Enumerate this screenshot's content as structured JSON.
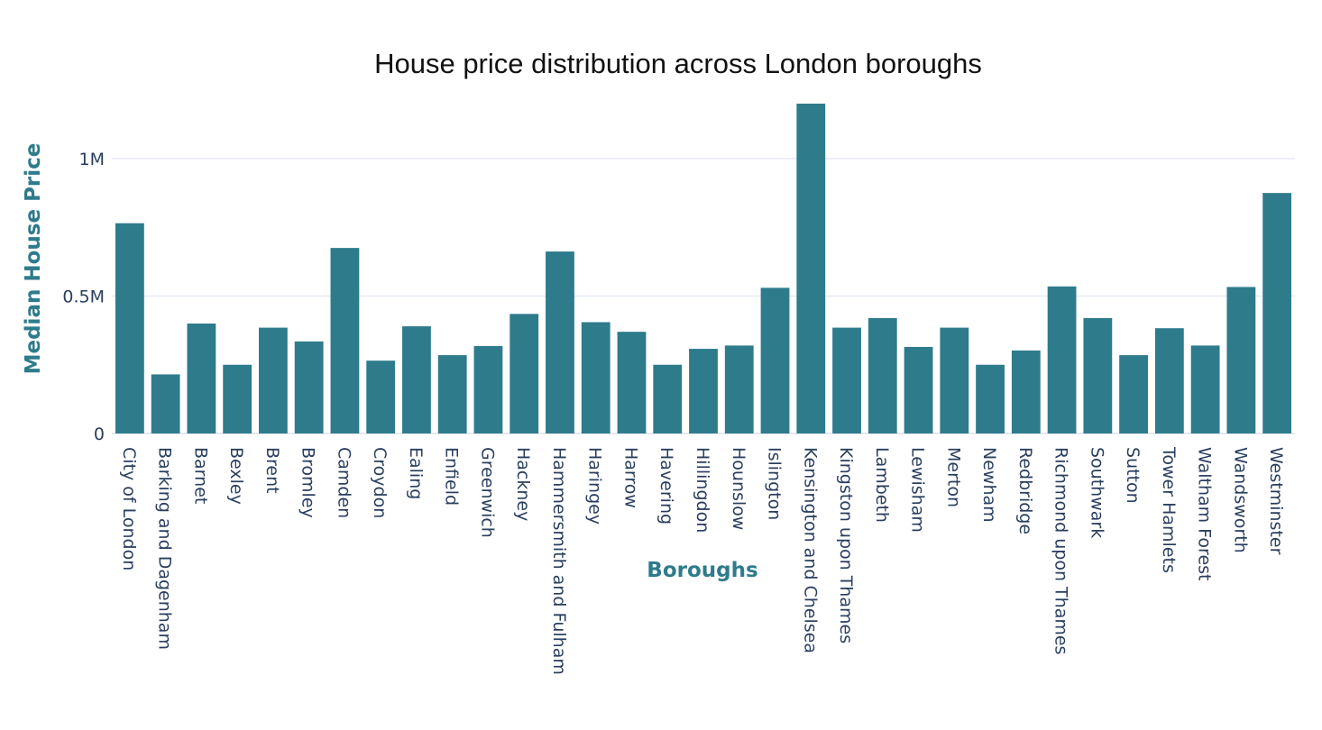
{
  "chart_data": {
    "type": "bar",
    "title": "House price distribution across London boroughs",
    "xlabel": "Boroughs",
    "ylabel": "Median House Price",
    "ylim": [
      0,
      1200000
    ],
    "yticks": [
      0,
      500000,
      1000000
    ],
    "ytick_labels": [
      "0",
      "0.5M",
      "1M"
    ],
    "grid": true,
    "colors": {
      "bar": "#2e7b8c",
      "axis_title": "#2e7b8c",
      "tick": "#2a3f5f",
      "grid": "#e6e9f5"
    },
    "categories": [
      "City of London",
      "Barking and Dagenham",
      "Barnet",
      "Bexley",
      "Brent",
      "Bromley",
      "Camden",
      "Croydon",
      "Ealing",
      "Enfield",
      "Greenwich",
      "Hackney",
      "Hammersmith and Fulham",
      "Haringey",
      "Harrow",
      "Havering",
      "Hillingdon",
      "Hounslow",
      "Islington",
      "Kensington and Chelsea",
      "Kingston upon Thames",
      "Lambeth",
      "Lewisham",
      "Merton",
      "Newham",
      "Redbridge",
      "Richmond upon Thames",
      "Southwark",
      "Sutton",
      "Tower Hamlets",
      "Waltham Forest",
      "Wandsworth",
      "Westminster"
    ],
    "values": [
      765000,
      215000,
      400000,
      250000,
      385000,
      335000,
      675000,
      265000,
      390000,
      285000,
      318000,
      435000,
      662000,
      405000,
      370000,
      250000,
      308000,
      320000,
      530000,
      1200000,
      385000,
      420000,
      315000,
      385000,
      250000,
      302000,
      535000,
      420000,
      285000,
      383000,
      320000,
      533000,
      875000
    ]
  }
}
